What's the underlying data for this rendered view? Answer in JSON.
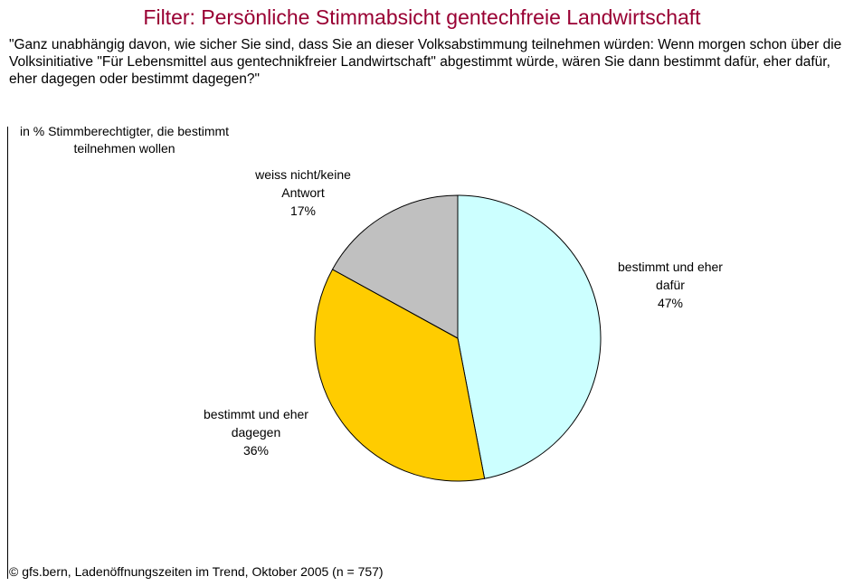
{
  "chart_data": {
    "type": "pie",
    "title": "Filter: Persönliche Stimmabsicht gentechfreie Landwirtschaft",
    "subtitle": "\"Ganz unabhängig davon, wie sicher Sie sind, dass Sie an dieser Volksabstimmung teilnehmen würden: Wenn morgen schon über die Volksinitiative \"Für Lebensmittel aus gentechnikfreier Landwirtschaft\" abgestimmt würde, wären Sie dann bestimmt dafür, eher dafür, eher dagegen oder bestimmt dagegen?\"",
    "note": "in % Stimmberechtigter, die bestimmt teilnehmen wollen",
    "source": "© gfs.bern, Ladenöffnungszeiten im Trend, Oktober 2005 (n = 757)",
    "categories": [
      "bestimmt und eher dafür",
      "bestimmt und eher dagegen",
      "weiss nicht/keine Antwort"
    ],
    "values": [
      47,
      36,
      17
    ],
    "value_labels": [
      "47%",
      "36%",
      "17%"
    ],
    "colors": [
      "#ccffff",
      "#ffcc00",
      "#c0c0c0"
    ]
  }
}
